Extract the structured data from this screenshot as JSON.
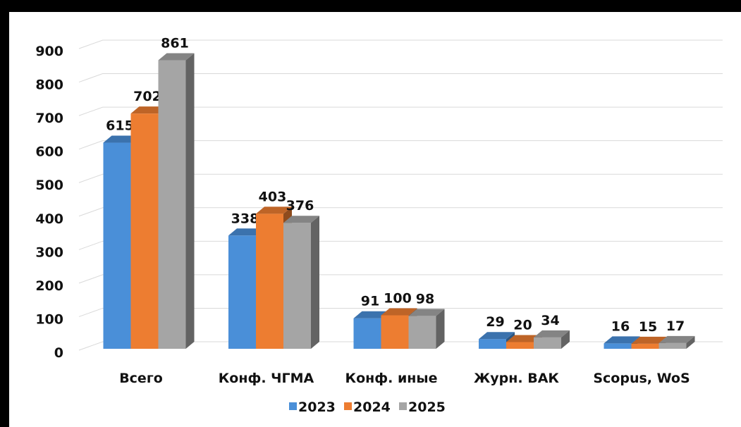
{
  "chart_data": {
    "type": "bar3d",
    "categories": [
      "Всего",
      "Конф. ЧГМА",
      "Конф. иные",
      "Журн. ВАК",
      "Scopus, WoS"
    ],
    "series": [
      {
        "name": "2023",
        "color": "#4a8fd8",
        "values": [
          615,
          338,
          91,
          29,
          16
        ]
      },
      {
        "name": "2024",
        "color": "#ed7d31",
        "values": [
          702,
          403,
          100,
          20,
          15
        ]
      },
      {
        "name": "2025",
        "color": "#a5a5a5",
        "values": [
          861,
          376,
          98,
          34,
          17
        ]
      }
    ],
    "ylim": [
      0,
      900
    ],
    "yticks": [
      0,
      100,
      200,
      300,
      400,
      500,
      600,
      700,
      800,
      900
    ],
    "grid": true,
    "legend": "bottom"
  }
}
